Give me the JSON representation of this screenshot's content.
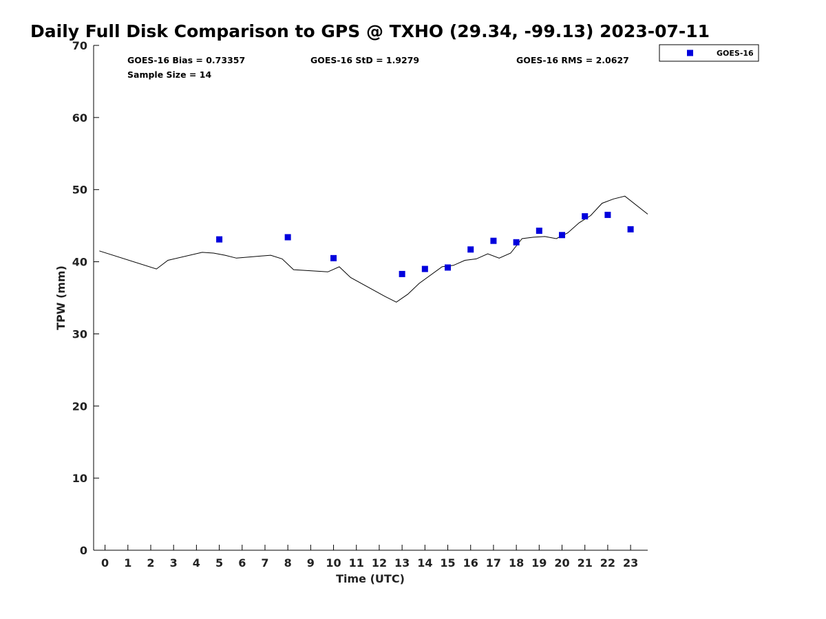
{
  "chart_data": {
    "type": "scatter",
    "title": "Daily Full Disk Comparison to GPS @ TXHO (29.34, -99.13) 2023-07-11",
    "xlabel": "Time (UTC)",
    "ylabel": "TPW (mm)",
    "xlim": [
      -0.5,
      23.75
    ],
    "ylim": [
      0,
      70
    ],
    "x_ticks": [
      0,
      1,
      2,
      3,
      4,
      5,
      6,
      7,
      8,
      9,
      10,
      11,
      12,
      13,
      14,
      15,
      16,
      17,
      18,
      19,
      20,
      21,
      22,
      23
    ],
    "y_ticks": [
      0,
      10,
      20,
      30,
      40,
      50,
      60,
      70
    ],
    "grid": false,
    "legend_position": "outside top-right",
    "stats": {
      "bias": "GOES-16 Bias = 0.73357",
      "std": "GOES-16 StD = 1.9279",
      "rms": "GOES-16 RMS = 2.0627",
      "sample": "Sample Size = 14"
    },
    "series": [
      {
        "name": "GOES-16",
        "kind": "scatter",
        "marker": "square",
        "color": "#0000dd",
        "points": [
          [
            5,
            43.1
          ],
          [
            8,
            43.4
          ],
          [
            10,
            40.5
          ],
          [
            13,
            38.3
          ],
          [
            14,
            39.0
          ],
          [
            15,
            39.2
          ],
          [
            16,
            41.7
          ],
          [
            17,
            42.9
          ],
          [
            18,
            42.7
          ],
          [
            19,
            44.3
          ],
          [
            20,
            43.7
          ],
          [
            21,
            46.3
          ],
          [
            22,
            46.5
          ],
          [
            23,
            44.5
          ]
        ]
      },
      {
        "kind": "line",
        "color": "#000000",
        "points": [
          [
            -0.25,
            41.5
          ],
          [
            2.25,
            39.0
          ],
          [
            2.75,
            40.2
          ],
          [
            4.25,
            41.3
          ],
          [
            4.75,
            41.2
          ],
          [
            5.25,
            40.9
          ],
          [
            5.75,
            40.5
          ],
          [
            7.25,
            40.9
          ],
          [
            7.75,
            40.4
          ],
          [
            8.25,
            38.9
          ],
          [
            9.75,
            38.6
          ],
          [
            10.25,
            39.3
          ],
          [
            10.75,
            37.8
          ],
          [
            12.25,
            35.2
          ],
          [
            12.75,
            34.4
          ],
          [
            13.25,
            35.5
          ],
          [
            13.75,
            37.0
          ],
          [
            14.75,
            39.3
          ],
          [
            15.25,
            39.5
          ],
          [
            15.75,
            40.2
          ],
          [
            16.25,
            40.4
          ],
          [
            16.75,
            41.1
          ],
          [
            17.25,
            40.5
          ],
          [
            17.75,
            41.2
          ],
          [
            18.25,
            43.2
          ],
          [
            18.75,
            43.4
          ],
          [
            19.25,
            43.5
          ],
          [
            19.75,
            43.2
          ],
          [
            20.25,
            44.0
          ],
          [
            20.75,
            45.4
          ],
          [
            21.25,
            46.4
          ],
          [
            21.75,
            48.1
          ],
          [
            22.25,
            48.7
          ],
          [
            22.75,
            49.1
          ],
          [
            23.75,
            46.6
          ]
        ]
      }
    ]
  }
}
